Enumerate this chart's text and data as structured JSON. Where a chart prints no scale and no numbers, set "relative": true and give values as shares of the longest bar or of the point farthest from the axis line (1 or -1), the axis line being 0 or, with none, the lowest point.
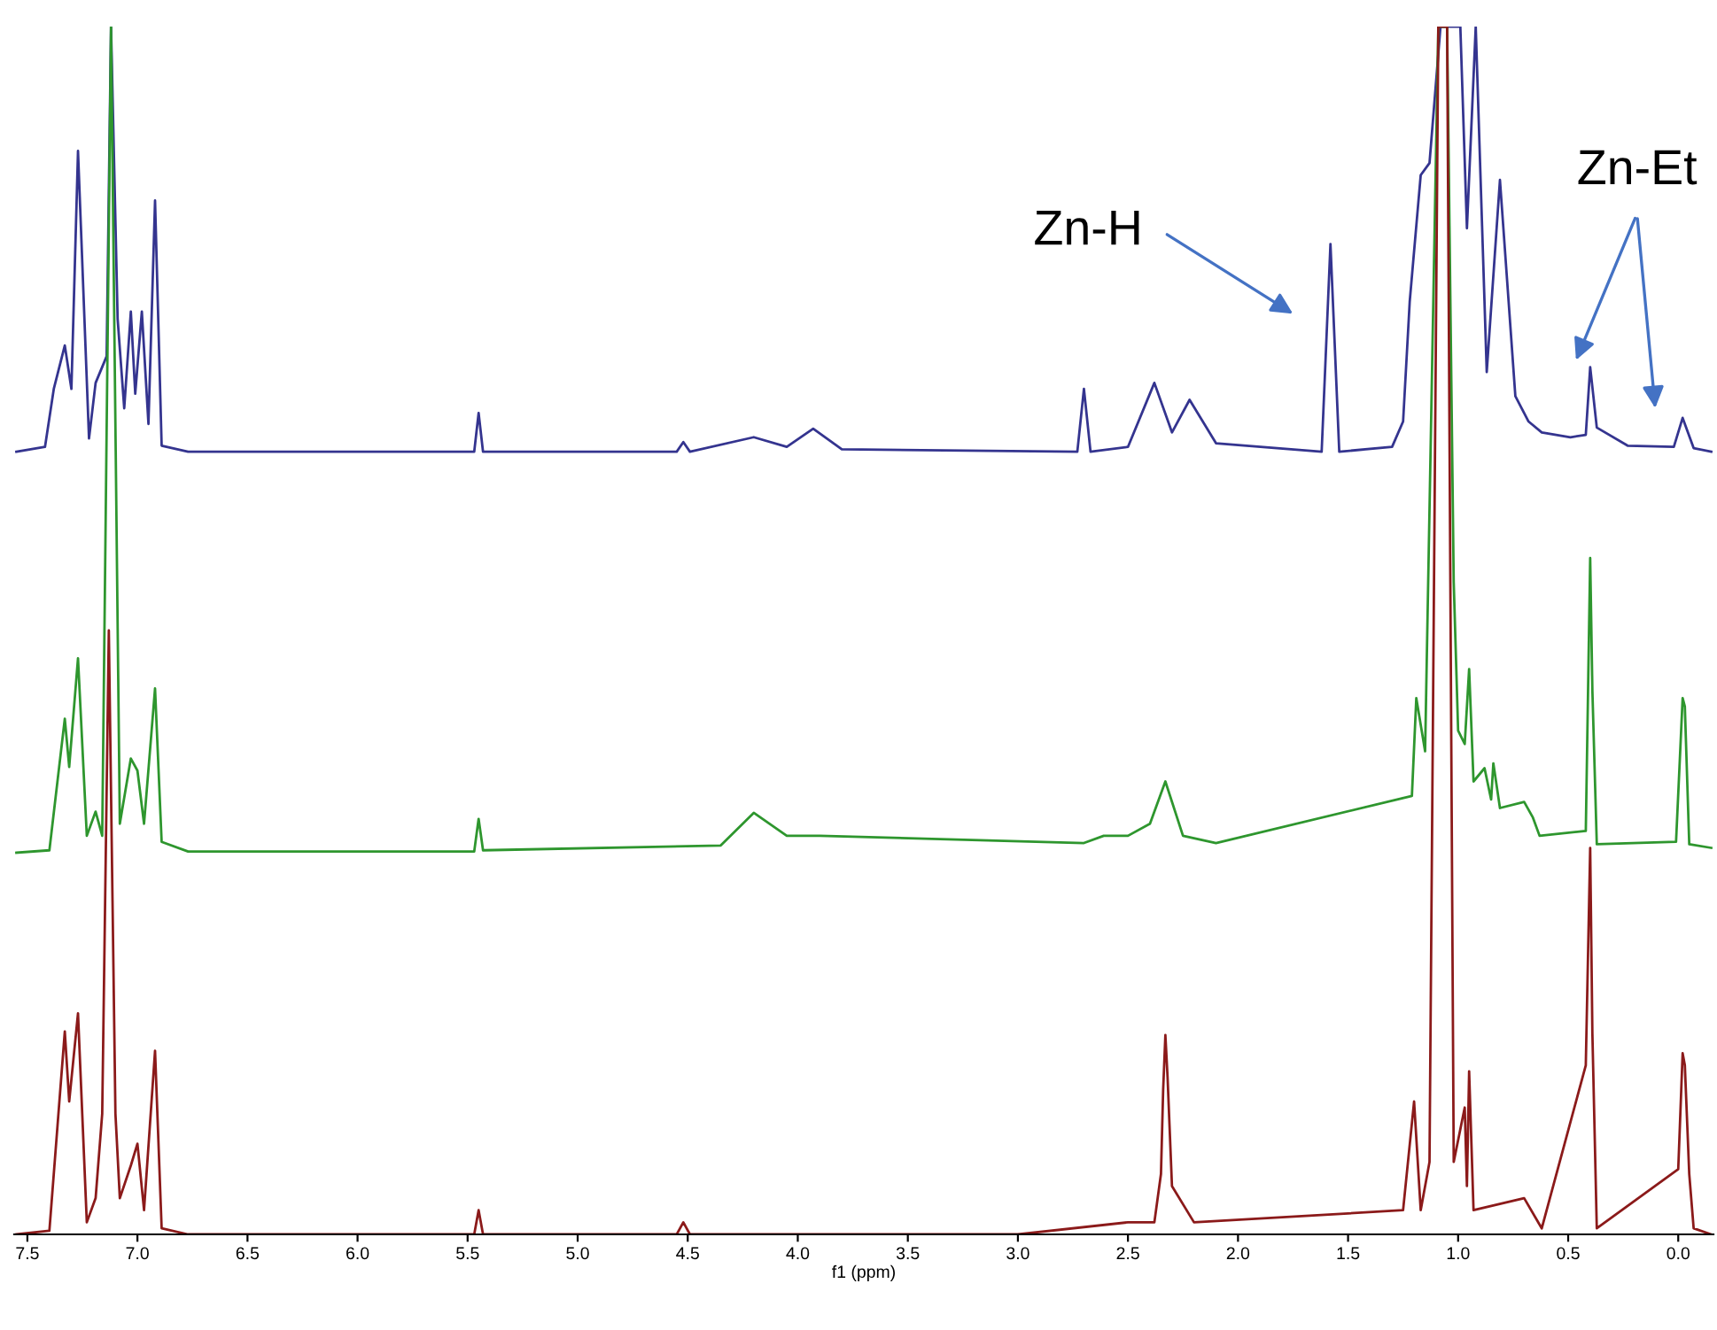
{
  "chart_data": {
    "type": "line",
    "relative": true,
    "xlabel": "f1 (ppm)",
    "xlim": [
      7.56,
      -0.16
    ],
    "xticks": [
      7.5,
      {
        "value": 7,
        "label": "7.0"
      },
      6.5,
      {
        "value": 6,
        "label": "6.0"
      },
      5.5,
      {
        "value": 5,
        "label": "5.0"
      },
      4.5,
      {
        "value": 4,
        "label": "4.0"
      },
      3.5,
      {
        "value": 3,
        "label": "3.0"
      },
      2.5,
      {
        "value": 2,
        "label": "2.0"
      },
      1.5,
      {
        "value": 1,
        "label": "1.0"
      },
      0.5,
      {
        "value": 0,
        "label": "0.0"
      }
    ],
    "grid": false,
    "line_style": "solid",
    "series": [
      {
        "color": "#34348f",
        "x": [
          7.55,
          7.42,
          7.38,
          7.33,
          7.3,
          7.27,
          7.22,
          7.19,
          7.14,
          7.12,
          7.09,
          7.06,
          7.03,
          7.01,
          6.98,
          6.95,
          6.92,
          6.89,
          6.77,
          5.47,
          5.45,
          5.43,
          4.55,
          4.52,
          4.49,
          4.2,
          4.05,
          3.93,
          3.8,
          2.73,
          2.7,
          2.67,
          2.5,
          2.38,
          2.3,
          2.22,
          2.1,
          1.62,
          1.58,
          1.54,
          1.3,
          1.25,
          1.22,
          1.17,
          1.13,
          1.08,
          0.99,
          0.96,
          0.92,
          0.87,
          0.81,
          0.74,
          0.68,
          0.62,
          0.49,
          0.42,
          0.4,
          0.37,
          0.23,
          0.02,
          -0.02,
          -0.07,
          -0.15
        ],
        "values": [
          0.648,
          0.652,
          0.7,
          0.736,
          0.7,
          0.897,
          0.659,
          0.705,
          0.727,
          1.0,
          0.758,
          0.684,
          0.764,
          0.696,
          0.764,
          0.671,
          0.856,
          0.653,
          0.648,
          0.648,
          0.68,
          0.648,
          0.648,
          0.656,
          0.648,
          0.66,
          0.652,
          0.667,
          0.65,
          0.648,
          0.7,
          0.648,
          0.652,
          0.705,
          0.664,
          0.691,
          0.655,
          0.648,
          0.82,
          0.648,
          0.652,
          0.673,
          0.772,
          0.877,
          0.887,
          1.0,
          1.0,
          0.833,
          1.0,
          0.714,
          0.873,
          0.694,
          0.673,
          0.664,
          0.66,
          0.662,
          0.718,
          0.668,
          0.653,
          0.652,
          0.676,
          0.651,
          0.648
        ]
      },
      {
        "color": "#2e962e",
        "x": [
          7.55,
          7.4,
          7.33,
          7.31,
          7.27,
          7.23,
          7.19,
          7.16,
          7.12,
          7.08,
          7.03,
          7.0,
          6.97,
          6.92,
          6.89,
          6.77,
          5.47,
          5.45,
          5.43,
          4.35,
          4.2,
          4.05,
          3.9,
          2.7,
          2.61,
          2.5,
          2.4,
          2.33,
          2.25,
          2.1,
          1.21,
          1.19,
          1.15,
          1.09,
          1.05,
          1.02,
          1.0,
          0.97,
          0.95,
          0.93,
          0.88,
          0.85,
          0.84,
          0.81,
          0.7,
          0.66,
          0.63,
          0.42,
          0.4,
          0.39,
          0.37,
          0.01,
          -0.02,
          -0.03,
          -0.05,
          -0.15
        ],
        "values": [
          0.316,
          0.318,
          0.427,
          0.387,
          0.477,
          0.33,
          0.35,
          0.33,
          1.0,
          0.34,
          0.394,
          0.384,
          0.34,
          0.452,
          0.325,
          0.317,
          0.317,
          0.344,
          0.318,
          0.322,
          0.349,
          0.33,
          0.33,
          0.324,
          0.33,
          0.33,
          0.34,
          0.375,
          0.33,
          0.324,
          0.363,
          0.444,
          0.4,
          1.0,
          1.0,
          0.54,
          0.417,
          0.406,
          0.468,
          0.375,
          0.386,
          0.36,
          0.39,
          0.353,
          0.358,
          0.345,
          0.33,
          0.334,
          0.56,
          0.45,
          0.323,
          0.325,
          0.444,
          0.437,
          0.323,
          0.32
        ]
      },
      {
        "color": "#8b1a1a",
        "x": [
          7.55,
          7.4,
          7.33,
          7.31,
          7.27,
          7.23,
          7.19,
          7.16,
          7.13,
          7.1,
          7.08,
          7.03,
          7.0,
          6.97,
          6.92,
          6.89,
          6.77,
          5.47,
          5.45,
          5.43,
          4.55,
          4.52,
          4.49,
          3.0,
          2.5,
          2.38,
          2.35,
          2.34,
          2.33,
          2.32,
          2.3,
          2.2,
          1.25,
          1.2,
          1.17,
          1.13,
          1.09,
          1.05,
          1.02,
          0.97,
          0.96,
          0.95,
          0.93,
          0.7,
          0.62,
          0.42,
          0.4,
          0.39,
          0.37,
          0.0,
          -0.02,
          -0.03,
          -0.05,
          -0.07,
          -0.15
        ],
        "values": [
          0.0,
          0.003,
          0.168,
          0.11,
          0.183,
          0.01,
          0.03,
          0.1,
          0.5,
          0.1,
          0.03,
          0.057,
          0.075,
          0.02,
          0.152,
          0.005,
          0.0,
          0.0,
          0.02,
          0.0,
          0.0,
          0.01,
          0.0,
          0.0,
          0.01,
          0.01,
          0.05,
          0.12,
          0.165,
          0.13,
          0.04,
          0.01,
          0.02,
          0.11,
          0.02,
          0.06,
          1.0,
          1.0,
          0.06,
          0.105,
          0.04,
          0.135,
          0.02,
          0.03,
          0.005,
          0.14,
          0.32,
          0.166,
          0.005,
          0.054,
          0.15,
          0.14,
          0.05,
          0.005,
          0.0
        ]
      }
    ],
    "annotations": [
      "Zn-H",
      "Zn-Et"
    ]
  }
}
